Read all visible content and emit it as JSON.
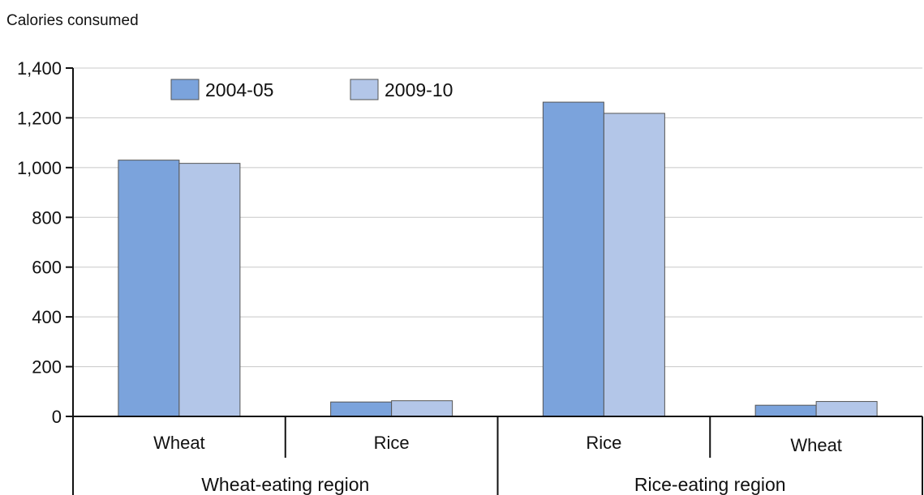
{
  "chart_data": {
    "type": "bar",
    "ylabel": "Calories consumed",
    "xlabel": "",
    "ylim": [
      0,
      1400
    ],
    "yticks": [
      0,
      200,
      400,
      600,
      800,
      1000,
      1200,
      1400
    ],
    "ytick_labels": [
      "0",
      "200",
      "400",
      "600",
      "800",
      "1,000",
      "1,200",
      "1,400"
    ],
    "grid": true,
    "legend_position": "top-left",
    "categories": [
      "Wheat",
      "Rice",
      "Rice",
      "Wheat"
    ],
    "groups": [
      {
        "label": "Wheat-eating region",
        "categories": [
          0,
          1
        ]
      },
      {
        "label": "Rice-eating region",
        "categories": [
          2,
          3
        ]
      }
    ],
    "series": [
      {
        "name": "2004-05",
        "color": "#7ba3dc",
        "values": [
          1030,
          58,
          1263,
          45
        ]
      },
      {
        "name": "2009-10",
        "color": "#b3c6e8",
        "values": [
          1017,
          63,
          1218,
          60
        ]
      }
    ]
  }
}
